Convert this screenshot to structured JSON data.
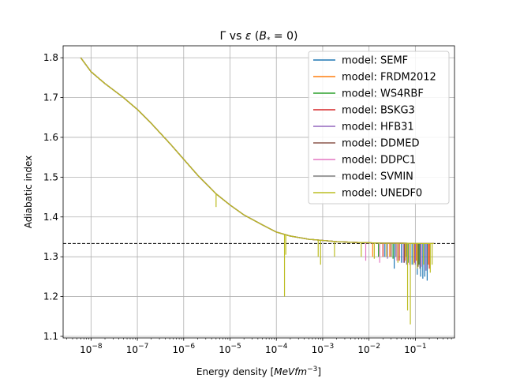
{
  "chart_data": {
    "type": "line",
    "title_parts": {
      "gamma": "Γ",
      "vs": " vs ",
      "eps": "ε",
      "bopen": " (",
      "b": "B",
      "bsub": "*",
      "eq": " = 0)"
    },
    "xlabel_parts": {
      "text": "Energy density ",
      "unit_open": "[",
      "unit": "MeVfm",
      "unit_exp": "−3",
      "unit_close": "]"
    },
    "ylabel": "Adiabatic index",
    "x_scale": "log",
    "xlim": [
      2.5e-09,
      0.7
    ],
    "ylim": [
      1.096,
      1.83
    ],
    "x_ticks": [
      {
        "v": 1e-08,
        "base": "10",
        "exp": "−8"
      },
      {
        "v": 1e-07,
        "base": "10",
        "exp": "−7"
      },
      {
        "v": 1e-06,
        "base": "10",
        "exp": "−6"
      },
      {
        "v": 1e-05,
        "base": "10",
        "exp": "−5"
      },
      {
        "v": 0.0001,
        "base": "10",
        "exp": "−4"
      },
      {
        "v": 0.001,
        "base": "10",
        "exp": "−3"
      },
      {
        "v": 0.01,
        "base": "10",
        "exp": "−2"
      },
      {
        "v": 0.1,
        "base": "10",
        "exp": "−1"
      }
    ],
    "y_ticks": [
      {
        "v": 1.1,
        "label": "1.1"
      },
      {
        "v": 1.2,
        "label": "1.2"
      },
      {
        "v": 1.3,
        "label": "1.3"
      },
      {
        "v": 1.4,
        "label": "1.4"
      },
      {
        "v": 1.5,
        "label": "1.5"
      },
      {
        "v": 1.6,
        "label": "1.6"
      },
      {
        "v": 1.7,
        "label": "1.7"
      },
      {
        "v": 1.8,
        "label": "1.8"
      }
    ],
    "grid": true,
    "legend_position": "upper-right",
    "reference_line": {
      "y": 1.3333,
      "style": "dashed",
      "color": "#000000"
    },
    "base_curve": {
      "x": [
        6e-09,
        1e-08,
        2e-08,
        5e-08,
        1e-07,
        2e-07,
        5e-07,
        1e-06,
        2e-06,
        5e-06,
        1e-05,
        2e-05,
        5e-05,
        0.0001,
        0.0002,
        0.0005,
        0.001,
        0.002,
        0.005,
        0.01,
        0.02,
        0.05,
        0.1,
        0.15,
        0.25
      ],
      "y": [
        1.8,
        1.765,
        1.735,
        1.7,
        1.67,
        1.635,
        1.585,
        1.545,
        1.505,
        1.458,
        1.43,
        1.405,
        1.38,
        1.362,
        1.352,
        1.344,
        1.341,
        1.338,
        1.336,
        1.335,
        1.334,
        1.334,
        1.3335,
        1.3333,
        1.3333
      ]
    },
    "series": [
      {
        "name": "model: SEMF",
        "color": "#1f77b4",
        "spikes": [
          [
            0.022,
            1.3
          ],
          [
            0.035,
            1.27
          ],
          [
            0.05,
            1.285
          ],
          [
            0.085,
            1.28
          ],
          [
            0.11,
            1.255
          ],
          [
            0.13,
            1.25
          ],
          [
            0.145,
            1.245
          ],
          [
            0.16,
            1.25
          ],
          [
            0.18,
            1.24
          ]
        ]
      },
      {
        "name": "model: FRDM2012",
        "color": "#ff7f0e",
        "spikes": [
          [
            0.012,
            1.3
          ],
          [
            0.028,
            1.3
          ],
          [
            0.06,
            1.29
          ],
          [
            0.105,
            1.29
          ],
          [
            0.19,
            1.28
          ]
        ]
      },
      {
        "name": "model: WS4RBF",
        "color": "#2ca02c",
        "spikes": [
          [
            0.016,
            1.3
          ],
          [
            0.033,
            1.295
          ],
          [
            0.07,
            1.285
          ],
          [
            0.12,
            1.28
          ]
        ]
      },
      {
        "name": "model: BSKG3",
        "color": "#d62728",
        "spikes": [
          [
            0.02,
            1.3
          ],
          [
            0.045,
            1.29
          ],
          [
            0.095,
            1.285
          ],
          [
            0.2,
            1.27
          ]
        ]
      },
      {
        "name": "model: HFB31",
        "color": "#9467bd",
        "spikes": [
          [
            0.025,
            1.295
          ],
          [
            0.055,
            1.285
          ],
          [
            0.1,
            1.28
          ],
          [
            0.17,
            1.265
          ]
        ]
      },
      {
        "name": "model: DDMED",
        "color": "#8c564b",
        "spikes": [
          [
            0.03,
            1.3
          ],
          [
            0.058,
            1.285
          ],
          [
            0.115,
            1.275
          ]
        ]
      },
      {
        "name": "model: DDPC1",
        "color": "#e377c2",
        "spikes": [
          [
            0.0085,
            1.29
          ],
          [
            0.017,
            1.285
          ],
          [
            0.04,
            1.29
          ],
          [
            0.075,
            1.28
          ],
          [
            0.135,
            1.275
          ]
        ]
      },
      {
        "name": "model: SVMIN",
        "color": "#7f7f7f",
        "spikes": [
          [
            0.038,
            1.3
          ],
          [
            0.065,
            1.28
          ],
          [
            0.125,
            1.27
          ]
        ]
      },
      {
        "name": "model: UNEDF0",
        "color": "#bcbd22",
        "spikes": [
          [
            5e-06,
            1.425
          ],
          [
            0.00015,
            1.2
          ],
          [
            0.00016,
            1.305
          ],
          [
            0.0008,
            1.3
          ],
          [
            0.0009,
            1.28
          ],
          [
            0.0018,
            1.3
          ],
          [
            0.0068,
            1.3
          ],
          [
            0.013,
            1.295
          ],
          [
            0.024,
            1.3
          ],
          [
            0.042,
            1.285
          ],
          [
            0.062,
            1.3
          ],
          [
            0.068,
            1.165
          ],
          [
            0.078,
            1.13
          ],
          [
            0.092,
            1.28
          ],
          [
            0.11,
            1.27
          ],
          [
            0.15,
            1.28
          ],
          [
            0.21,
            1.26
          ],
          [
            0.23,
            1.28
          ]
        ]
      }
    ]
  }
}
